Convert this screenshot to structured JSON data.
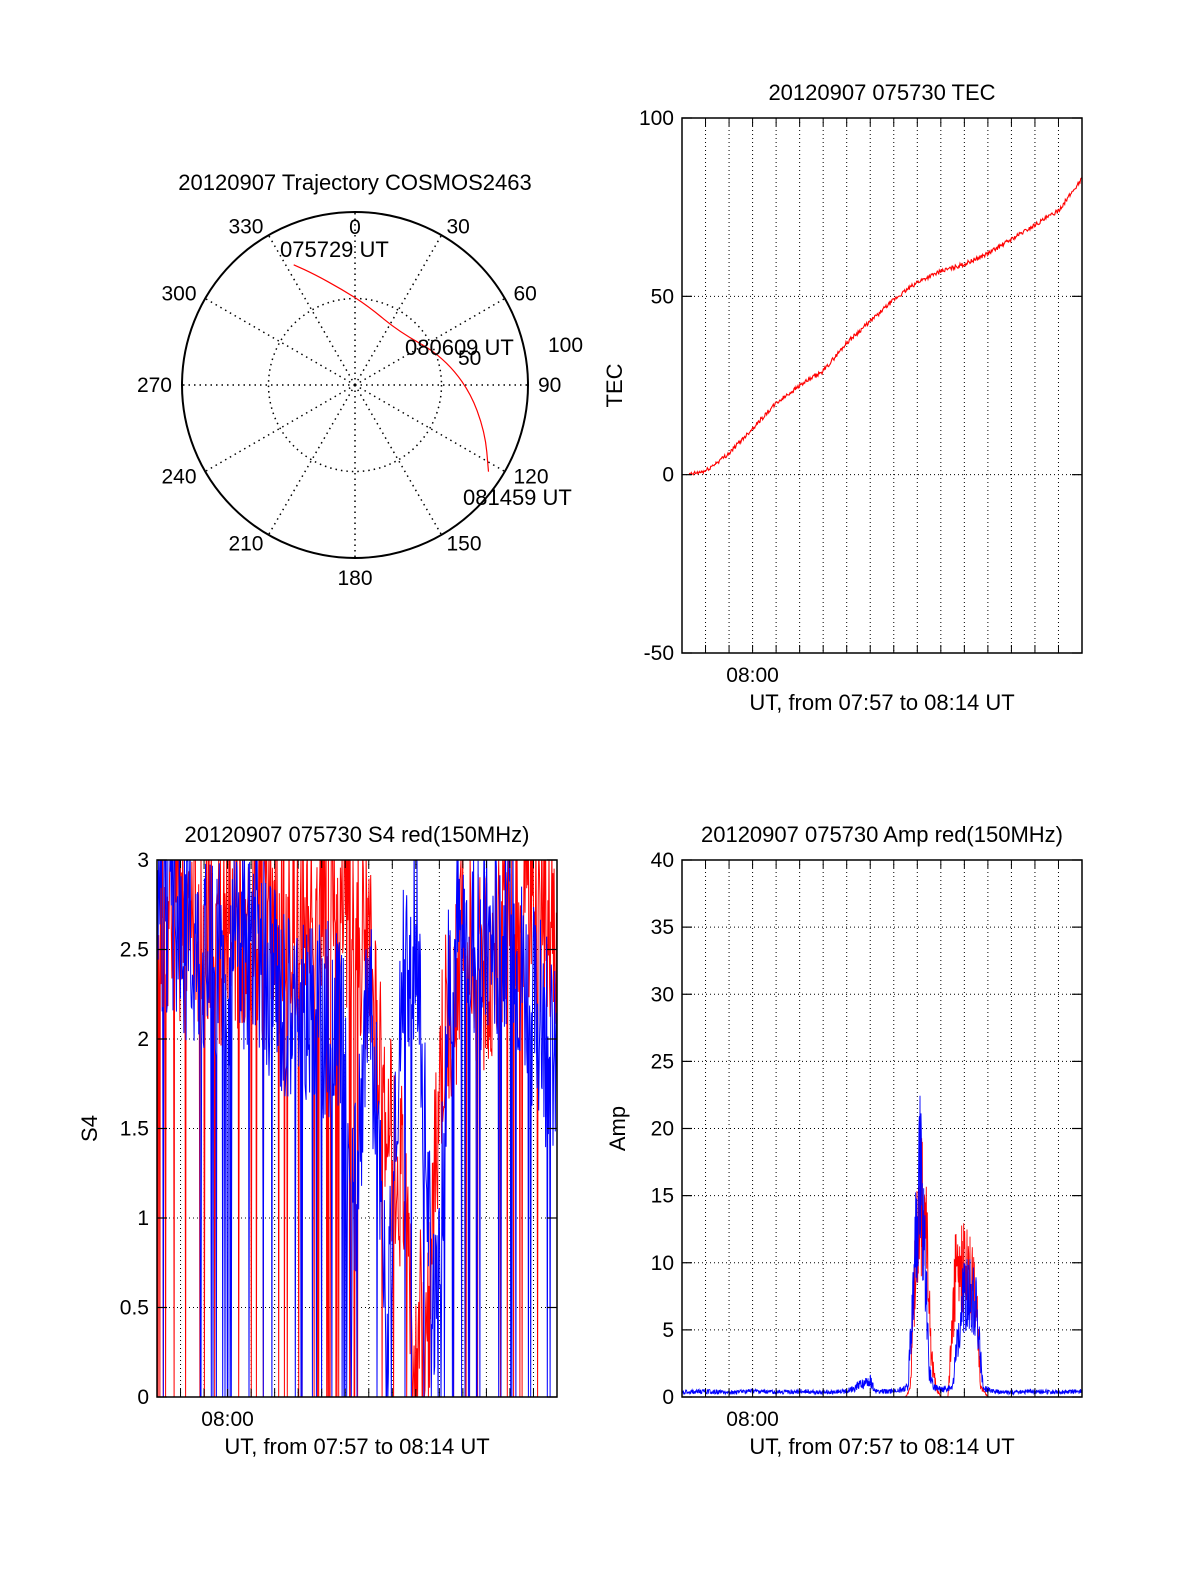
{
  "chart_data": [
    {
      "type": "polar",
      "title": "20120907 Trajectory COSMOS2463",
      "angle_labels": [
        "0",
        "30",
        "60",
        "90",
        "120",
        "150",
        "180",
        "210",
        "240",
        "270",
        "300",
        "330"
      ],
      "radial_labels": [
        "50",
        "100"
      ],
      "radial_max": 100,
      "path": [
        {
          "az": 333,
          "r": 78
        },
        {
          "az": 340,
          "r": 68
        },
        {
          "az": 352,
          "r": 56
        },
        {
          "az": 10,
          "r": 46
        },
        {
          "az": 40,
          "r": 40
        },
        {
          "az": 70,
          "r": 52
        },
        {
          "az": 92,
          "r": 66
        },
        {
          "az": 110,
          "r": 80
        },
        {
          "az": 123,
          "r": 92
        }
      ],
      "annotations": [
        {
          "text": "075729 UT",
          "az": 333,
          "r": 78
        },
        {
          "text": "080609 UT",
          "az": 68,
          "r": 56
        },
        {
          "text": "081459 UT",
          "az": 123,
          "r": 92
        }
      ],
      "line_color": "#ff0000"
    },
    {
      "type": "line",
      "title": "20120907 075730 TEC",
      "xlabel": "UT, from 07:57 to 08:14 UT",
      "ylabel": "TEC",
      "x_tick_labels": [
        {
          "t": 3,
          "label": "08:00"
        }
      ],
      "xlim": [
        0,
        17
      ],
      "ylim": [
        -50,
        100
      ],
      "y_ticks": [
        -50,
        0,
        50,
        100
      ],
      "grid": true,
      "series": [
        {
          "color": "#ff0000",
          "t": [
            0.3,
            1.0,
            2.0,
            3.0,
            4.0,
            5.0,
            6.0,
            7.0,
            8.0,
            9.0,
            10.0,
            11.0,
            12.0,
            13.0,
            14.0,
            15.0,
            16.0,
            17.0
          ],
          "values": [
            0,
            1,
            6,
            13,
            20,
            25,
            29,
            37,
            43,
            49,
            54,
            57,
            59,
            62,
            66,
            70,
            74,
            83
          ]
        }
      ]
    },
    {
      "type": "line",
      "title": "20120907 075730 S4 red(150MHz)",
      "xlabel": "UT, from 07:57 to 08:14 UT",
      "ylabel": "S4",
      "x_tick_labels": [
        {
          "t": 3,
          "label": "08:00"
        }
      ],
      "xlim": [
        0,
        17
      ],
      "ylim": [
        0,
        3
      ],
      "y_ticks": [
        0,
        0.5,
        1,
        1.5,
        2,
        2.5,
        3
      ],
      "grid": true,
      "series": [
        {
          "color": "#ff0000",
          "t": [
            0,
            1,
            2,
            3,
            4,
            5,
            6,
            7,
            8,
            9,
            9.5,
            10,
            10.5,
            11,
            11.5,
            12,
            13,
            14,
            15,
            16,
            17
          ],
          "values": [
            2.8,
            2.6,
            2.7,
            2.5,
            2.7,
            2.6,
            2.6,
            2.8,
            2.8,
            2.4,
            1.9,
            1.4,
            1.1,
            0.5,
            0.2,
            1.8,
            2.5,
            2.4,
            2.7,
            2.8,
            2.5
          ]
        },
        {
          "color": "#0000ff",
          "t": [
            0,
            1,
            2,
            3,
            4,
            5,
            6,
            7,
            8,
            8.2,
            9,
            9.8,
            10.5,
            11,
            11.8,
            12.5,
            13,
            14,
            15,
            16,
            17
          ],
          "values": [
            2.7,
            2.6,
            2.5,
            2.4,
            2.6,
            2.3,
            2.2,
            2.1,
            2.0,
            0.7,
            2.4,
            0.3,
            2.4,
            2.6,
            0.25,
            2.5,
            2.6,
            2.5,
            2.6,
            2.2,
            1.8
          ]
        }
      ]
    },
    {
      "type": "line",
      "title": "20120907 075730 Amp red(150MHz)",
      "xlabel": "UT, from 07:57 to 08:14 UT",
      "ylabel": "Amp",
      "x_tick_labels": [
        {
          "t": 3,
          "label": "08:00"
        }
      ],
      "xlim": [
        0,
        17
      ],
      "ylim": [
        0,
        40
      ],
      "y_ticks": [
        0,
        5,
        10,
        15,
        20,
        25,
        30,
        35,
        40
      ],
      "grid": true,
      "series": [
        {
          "color": "#ff0000",
          "t": [
            0,
            9.5,
            9.7,
            10.0,
            10.2,
            10.4,
            10.6,
            10.8,
            11.0,
            11.3,
            11.6,
            11.9,
            12.2,
            12.5,
            12.7,
            13.0,
            17.0
          ],
          "values": [
            0,
            0,
            1,
            18,
            20,
            16,
            4,
            1,
            0,
            0,
            12,
            14,
            13,
            10,
            1,
            0,
            0
          ]
        },
        {
          "color": "#0000ff",
          "t": [
            0,
            1,
            2,
            3,
            4,
            5,
            6,
            7,
            7.8,
            8.0,
            8.2,
            9.0,
            9.6,
            9.9,
            10.1,
            10.3,
            10.5,
            10.7,
            11.0,
            11.5,
            11.9,
            12.2,
            12.5,
            12.8,
            13.2,
            14,
            15,
            16,
            17
          ],
          "values": [
            0.5,
            0.6,
            0.5,
            0.6,
            0.5,
            0.6,
            0.5,
            0.6,
            1.5,
            1.8,
            0.6,
            0.6,
            1.0,
            14,
            24,
            16,
            3,
            1.0,
            0.8,
            1.0,
            10,
            11,
            9,
            1.0,
            0.6,
            0.5,
            0.6,
            0.5,
            0.6
          ]
        }
      ]
    }
  ]
}
